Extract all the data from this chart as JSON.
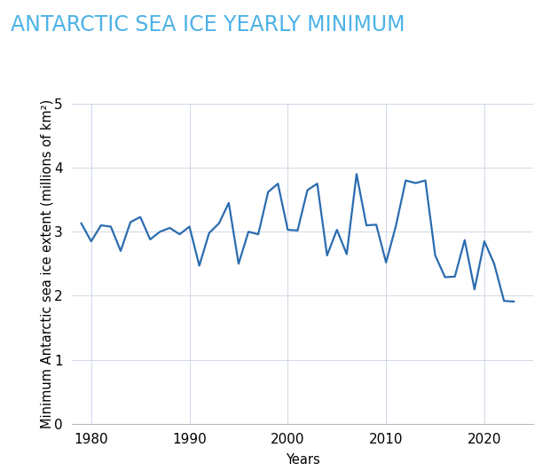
{
  "years": [
    1979,
    1980,
    1981,
    1982,
    1983,
    1984,
    1985,
    1986,
    1987,
    1988,
    1989,
    1990,
    1991,
    1992,
    1993,
    1994,
    1995,
    1996,
    1997,
    1998,
    1999,
    2000,
    2001,
    2002,
    2003,
    2004,
    2005,
    2006,
    2007,
    2008,
    2009,
    2010,
    2011,
    2012,
    2013,
    2014,
    2015,
    2016,
    2017,
    2018,
    2019,
    2020,
    2021,
    2022,
    2023
  ],
  "values": [
    3.13,
    2.85,
    3.1,
    3.08,
    2.7,
    3.15,
    3.23,
    2.88,
    3.0,
    3.06,
    2.96,
    3.08,
    2.47,
    2.98,
    3.13,
    3.45,
    2.5,
    3.0,
    2.96,
    3.62,
    3.75,
    3.03,
    3.02,
    3.65,
    3.75,
    2.63,
    3.03,
    2.65,
    3.9,
    3.1,
    3.11,
    2.52,
    3.09,
    3.8,
    3.76,
    3.8,
    2.63,
    2.29,
    2.3,
    2.87,
    2.1,
    2.85,
    2.5,
    1.92,
    1.91
  ],
  "title": "ANTARCTIC SEA ICE YEARLY MINIMUM",
  "xlabel": "Years",
  "ylabel": "Minimum Antarctic sea ice extent (millions of km²)",
  "ylim": [
    0,
    5
  ],
  "xlim": [
    1978,
    2025
  ],
  "yticks": [
    0,
    1,
    2,
    3,
    4,
    5
  ],
  "xticks": [
    1980,
    1990,
    2000,
    2010,
    2020
  ],
  "line_color": "#2b6cb0",
  "line_width": 1.6,
  "title_color": "#4db3e6",
  "title_fontsize": 17,
  "label_fontsize": 10.5,
  "tick_fontsize": 11,
  "grid_color": "#d0d8e8",
  "background_color": "#ffffff"
}
